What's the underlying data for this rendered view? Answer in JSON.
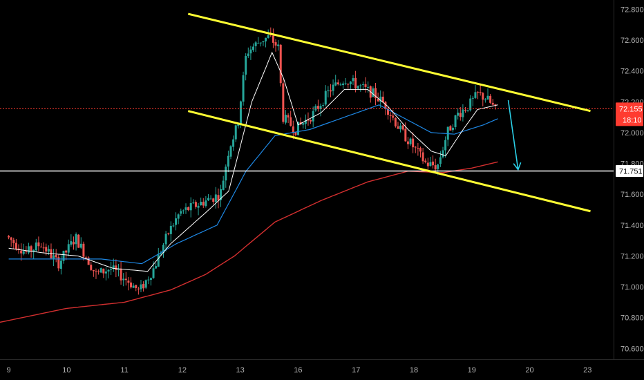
{
  "chart_data": {
    "type": "candlestick",
    "background": "#000000",
    "colors": {
      "up": "#26a69a",
      "down": "#ef5350",
      "ema_fast": "#ffffff",
      "ema_mid": "#1e88e5",
      "ema_slow": "#d32f2f",
      "channel": "#ffff33",
      "arrow": "#2bd0e8",
      "last_price_line": "#ff3b30",
      "support_line": "#ffffff",
      "axis_text": "#b5b5b5"
    },
    "x_axis": {
      "ticks": [
        {
          "label": "9",
          "t": 0.0
        },
        {
          "label": "10",
          "t": 1.0
        },
        {
          "label": "11",
          "t": 2.0
        },
        {
          "label": "12",
          "t": 3.0
        },
        {
          "label": "13",
          "t": 4.0
        },
        {
          "label": "16",
          "t": 5.0
        },
        {
          "label": "17",
          "t": 6.0
        },
        {
          "label": "18",
          "t": 7.0
        },
        {
          "label": "19",
          "t": 8.0
        },
        {
          "label": "20",
          "t": 9.0
        },
        {
          "label": "23",
          "t": 10.0
        }
      ],
      "range": [
        -0.15,
        10.45
      ]
    },
    "y_axis": {
      "ticks": [
        "72.800",
        "72.600",
        "72.400",
        "72.200",
        "72.000",
        "71.800",
        "71.600",
        "71.400",
        "71.200",
        "71.000",
        "70.800",
        "70.600"
      ],
      "tick_values": [
        72.8,
        72.6,
        72.4,
        72.2,
        72.0,
        71.8,
        71.6,
        71.4,
        71.2,
        71.0,
        70.8,
        70.6
      ],
      "range": [
        70.53,
        72.86
      ]
    },
    "last_price": {
      "value": 72.155,
      "label": "72.155",
      "countdown": "18:10"
    },
    "support_level": {
      "value": 71.751,
      "label": "71.751"
    },
    "channel_upper": [
      [
        3.1,
        72.77
      ],
      [
        10.05,
        72.14
      ]
    ],
    "channel_lower": [
      [
        3.1,
        72.14
      ],
      [
        10.05,
        71.49
      ]
    ],
    "forecast_arrow": [
      [
        8.63,
        72.21
      ],
      [
        8.8,
        71.76
      ]
    ],
    "anchors": [
      [
        0.0,
        71.33
      ],
      [
        0.35,
        71.22
      ],
      [
        0.6,
        71.28
      ],
      [
        0.9,
        71.15
      ],
      [
        1.2,
        71.32
      ],
      [
        1.55,
        71.08
      ],
      [
        1.8,
        71.12
      ],
      [
        2.1,
        71.04
      ],
      [
        2.3,
        70.97
      ],
      [
        2.55,
        71.12
      ],
      [
        2.8,
        71.35
      ],
      [
        3.0,
        71.48
      ],
      [
        3.4,
        71.55
      ],
      [
        3.7,
        71.6
      ],
      [
        3.85,
        71.9
      ],
      [
        4.0,
        72.05
      ],
      [
        4.15,
        72.52
      ],
      [
        4.4,
        72.6
      ],
      [
        4.55,
        72.62
      ],
      [
        4.7,
        72.55
      ],
      [
        4.78,
        72.1
      ],
      [
        5.0,
        72.02
      ],
      [
        5.3,
        72.12
      ],
      [
        5.6,
        72.28
      ],
      [
        5.85,
        72.35
      ],
      [
        6.1,
        72.3
      ],
      [
        6.35,
        72.25
      ],
      [
        6.55,
        72.18
      ],
      [
        6.8,
        72.02
      ],
      [
        7.05,
        71.9
      ],
      [
        7.25,
        71.8
      ],
      [
        7.45,
        71.78
      ],
      [
        7.62,
        72.0
      ],
      [
        7.8,
        72.12
      ],
      [
        8.0,
        72.18
      ],
      [
        8.15,
        72.25
      ],
      [
        8.3,
        72.22
      ],
      [
        8.45,
        72.15
      ]
    ],
    "ema_fast_anchors": [
      [
        0.0,
        71.25
      ],
      [
        0.6,
        71.22
      ],
      [
        1.2,
        71.2
      ],
      [
        1.8,
        71.12
      ],
      [
        2.4,
        71.1
      ],
      [
        2.8,
        71.28
      ],
      [
        3.4,
        71.48
      ],
      [
        3.8,
        71.62
      ],
      [
        4.2,
        72.2
      ],
      [
        4.55,
        72.52
      ],
      [
        4.75,
        72.35
      ],
      [
        5.0,
        72.05
      ],
      [
        5.4,
        72.13
      ],
      [
        5.8,
        72.28
      ],
      [
        6.2,
        72.28
      ],
      [
        6.55,
        72.17
      ],
      [
        6.9,
        72.02
      ],
      [
        7.3,
        71.88
      ],
      [
        7.55,
        71.85
      ],
      [
        7.85,
        72.02
      ],
      [
        8.1,
        72.15
      ],
      [
        8.45,
        72.18
      ]
    ],
    "ema_mid_anchors": [
      [
        0.0,
        71.18
      ],
      [
        0.8,
        71.18
      ],
      [
        1.6,
        71.18
      ],
      [
        2.3,
        71.15
      ],
      [
        2.9,
        71.28
      ],
      [
        3.6,
        71.4
      ],
      [
        4.1,
        71.75
      ],
      [
        4.6,
        71.98
      ],
      [
        5.2,
        72.02
      ],
      [
        5.8,
        72.1
      ],
      [
        6.4,
        72.18
      ],
      [
        6.8,
        72.1
      ],
      [
        7.3,
        72.0
      ],
      [
        7.7,
        71.99
      ],
      [
        8.2,
        72.05
      ],
      [
        8.45,
        72.09
      ]
    ],
    "ema_slow_anchors": [
      [
        -0.15,
        70.77
      ],
      [
        1.0,
        70.86
      ],
      [
        2.0,
        70.9
      ],
      [
        2.8,
        70.98
      ],
      [
        3.4,
        71.08
      ],
      [
        3.9,
        71.2
      ],
      [
        4.6,
        71.42
      ],
      [
        5.4,
        71.56
      ],
      [
        6.2,
        71.68
      ],
      [
        6.9,
        71.75
      ],
      [
        7.5,
        71.74
      ],
      [
        8.0,
        71.77
      ],
      [
        8.45,
        71.81
      ]
    ]
  }
}
